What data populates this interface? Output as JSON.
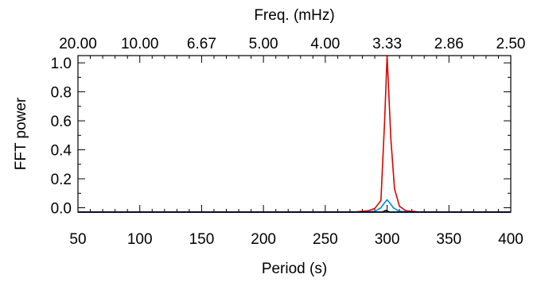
{
  "chart_data": {
    "type": "line",
    "title": "",
    "xlabel": "Period (s)",
    "ylabel": "FFT power",
    "x2label": "Freq. (mHz)",
    "xlim": [
      50,
      400
    ],
    "ylim": [
      -0.03,
      1.05
    ],
    "grid": false,
    "legend": "none",
    "x_ticks": [
      50,
      100,
      150,
      200,
      250,
      300,
      350,
      400
    ],
    "x_tick_labels": [
      "50",
      "100",
      "150",
      "200",
      "250",
      "300",
      "350",
      "400"
    ],
    "y_ticks": [
      0.0,
      0.2,
      0.4,
      0.6,
      0.8,
      1.0
    ],
    "y_tick_labels": [
      "0.0",
      "0.2",
      "0.4",
      "0.6",
      "0.8",
      "1.0"
    ],
    "x2_tick_periods": [
      50,
      100,
      150,
      200,
      250,
      300,
      350,
      400
    ],
    "x2_tick_labels": [
      "20.00",
      "10.00",
      "6.67",
      "5.00",
      "4.00",
      "3.33",
      "2.86",
      "2.50"
    ],
    "series": [
      {
        "color": "#e00000",
        "x": [
          50,
          100,
          150,
          200,
          250,
          275,
          285,
          290,
          295,
          298,
          300,
          303,
          306,
          310,
          315,
          325,
          350,
          400
        ],
        "y": [
          -0.03,
          -0.03,
          -0.03,
          -0.03,
          -0.03,
          -0.028,
          -0.02,
          -0.005,
          0.05,
          0.6,
          1.05,
          0.48,
          0.13,
          0.01,
          -0.02,
          -0.028,
          -0.03,
          -0.03
        ]
      },
      {
        "color": "#0088dd",
        "x": [
          50,
          100,
          150,
          200,
          250,
          280,
          290,
          295,
          298,
          300,
          302,
          305,
          310,
          320,
          350,
          400
        ],
        "y": [
          -0.03,
          -0.03,
          -0.03,
          -0.03,
          -0.03,
          -0.029,
          -0.025,
          0.0,
          0.035,
          0.055,
          0.035,
          0.0,
          -0.025,
          -0.029,
          -0.03,
          -0.03
        ]
      },
      {
        "color": "#0000cc",
        "x": [
          50,
          400
        ],
        "y": [
          -0.03,
          -0.03
        ]
      },
      {
        "color": "#000000",
        "x": [
          50,
          296,
          299,
          302,
          305,
          400
        ],
        "y": [
          -0.03,
          -0.03,
          -0.018,
          -0.03,
          -0.03,
          -0.03
        ]
      }
    ]
  }
}
